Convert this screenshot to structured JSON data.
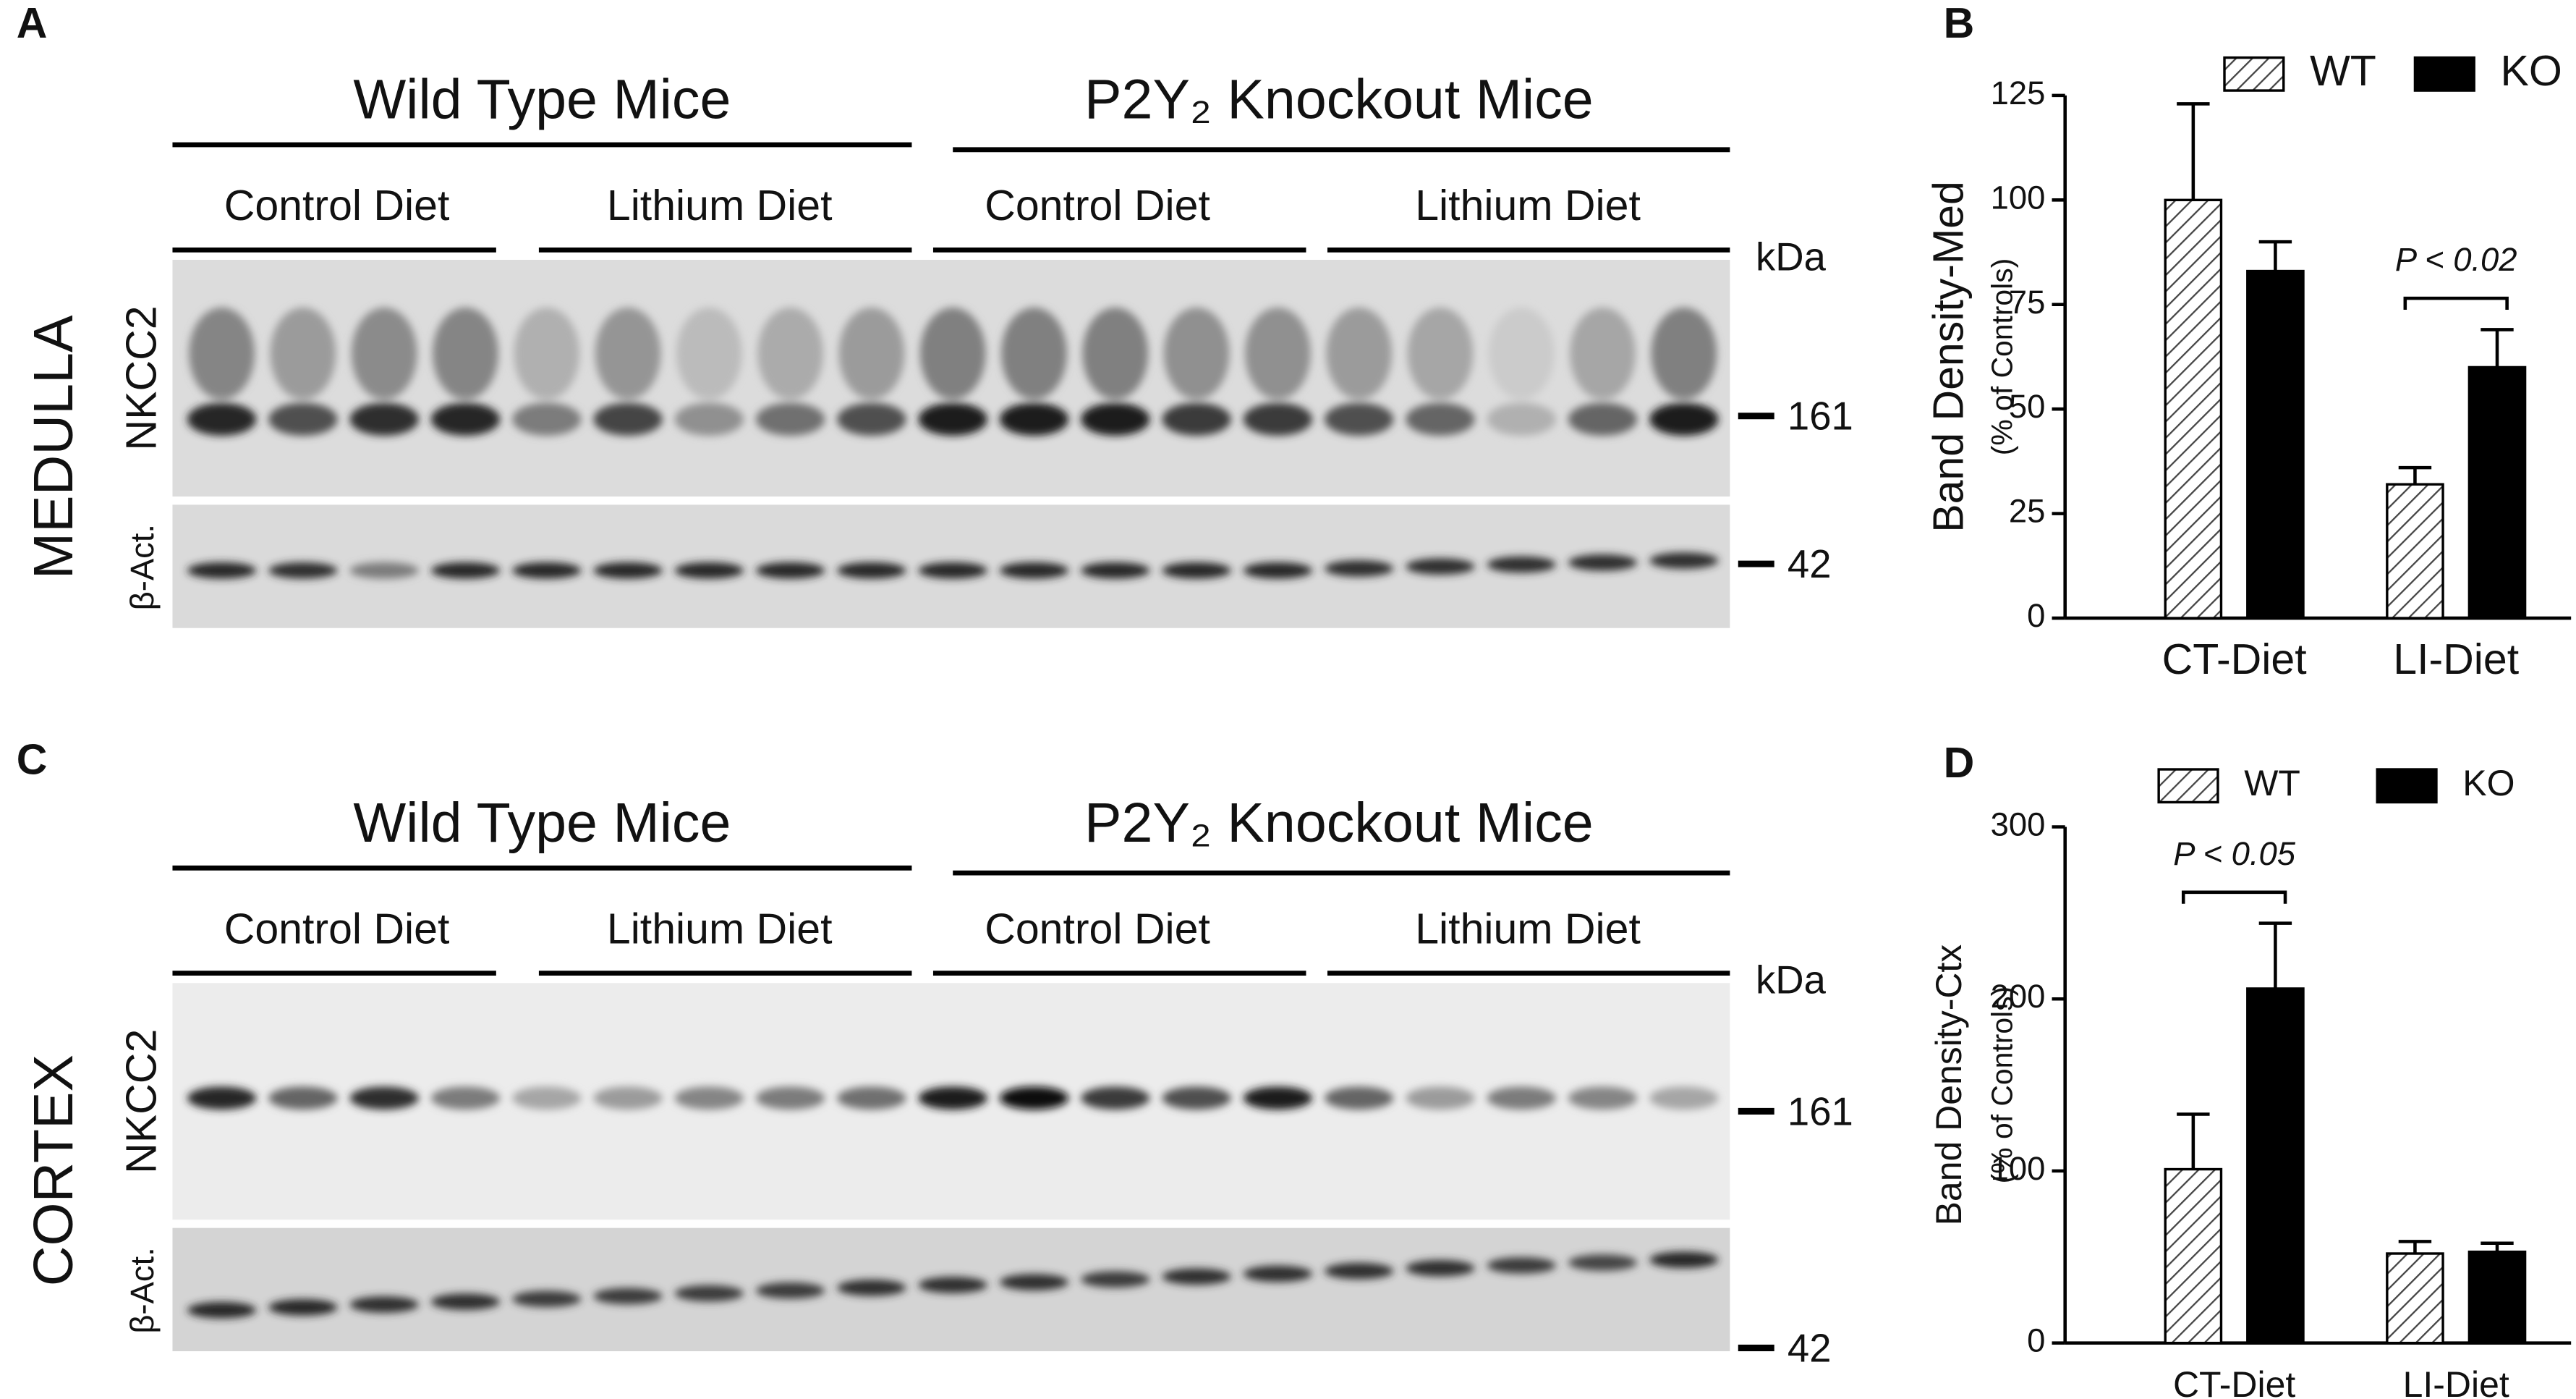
{
  "blots": [
    {
      "panel_label": "A",
      "tissue": "MEDULLA",
      "groups": [
        "Wild Type Mice",
        "P2Y₂ Knockout Mice"
      ],
      "diets": [
        "Control Diet",
        "Lithium Diet",
        "Control Diet",
        "Lithium Diet"
      ],
      "rows": [
        "NKCC2",
        "β-Act."
      ],
      "unit": "kDa",
      "markers": [
        161,
        42
      ]
    },
    {
      "panel_label": "C",
      "tissue": "CORTEX",
      "groups": [
        "Wild Type Mice",
        "P2Y₂ Knockout Mice"
      ],
      "diets": [
        "Control Diet",
        "Lithium Diet",
        "Control Diet",
        "Lithium Diet"
      ],
      "rows": [
        "NKCC2",
        "β-Act."
      ],
      "unit": "kDa",
      "markers": [
        161,
        42
      ]
    }
  ],
  "chart_data": [
    {
      "type": "bar",
      "panel_label": "B",
      "y_label": "Band  Density-Med",
      "y_sublabel": "(% of Controls)",
      "categories": [
        "CT-Diet",
        "LI-Diet"
      ],
      "series": [
        {
          "name": "WT",
          "color": "#ffffff",
          "hatch": true,
          "values": [
            100,
            32
          ],
          "errors": [
            23,
            4
          ]
        },
        {
          "name": "KO",
          "color": "#000000",
          "hatch": false,
          "values": [
            83,
            60
          ],
          "errors": [
            7,
            9
          ]
        }
      ],
      "ylim": [
        0,
        125
      ],
      "yticks": [
        0,
        25,
        50,
        75,
        100,
        125
      ],
      "significance": {
        "text": "P < 0.02",
        "category": 1
      }
    },
    {
      "type": "bar",
      "panel_label": "D",
      "y_label": "Band  Density-Ctx",
      "y_sublabel": "(% of Controls)",
      "categories": [
        "CT-Diet",
        "LI-Diet"
      ],
      "series": [
        {
          "name": "WT",
          "color": "#ffffff",
          "hatch": true,
          "values": [
            101,
            52
          ],
          "errors": [
            32,
            7
          ]
        },
        {
          "name": "KO",
          "color": "#000000",
          "hatch": false,
          "values": [
            206,
            53
          ],
          "errors": [
            38,
            5
          ]
        }
      ],
      "ylim": [
        0,
        300
      ],
      "yticks": [
        0,
        100,
        200,
        300
      ],
      "significance": {
        "text": "P < 0.05",
        "category": 0
      }
    }
  ]
}
